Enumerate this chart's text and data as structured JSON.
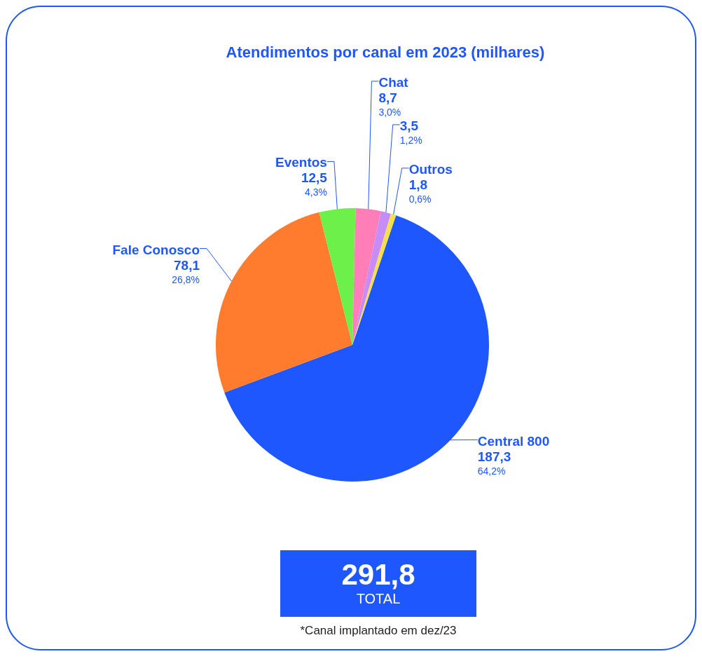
{
  "chart_data": {
    "type": "pie",
    "title": "Atendimentos por canal em 2023 (milhares)",
    "categories": [
      "Central 800",
      "Fale Conosco",
      "Eventos",
      "Chat",
      null,
      "Outros"
    ],
    "values": [
      187.3,
      78.1,
      12.5,
      8.7,
      3.5,
      1.8
    ],
    "colors": [
      "#1f57ff",
      "#ff7b2e",
      "#6df04a",
      "#ff7eb8",
      "#c78cf5",
      "#f5e04a"
    ],
    "value_labels": [
      "187,3\n64,2%",
      "78,1\n26,8%",
      "12,5\n4,3%",
      "8,7\n3,0%",
      "3,5\n1,2%",
      "1,8\n0,6%"
    ],
    "legend": false,
    "annotations": [
      "291,8",
      "TOTAL",
      "*Canal implantado em dez/23"
    ]
  }
}
